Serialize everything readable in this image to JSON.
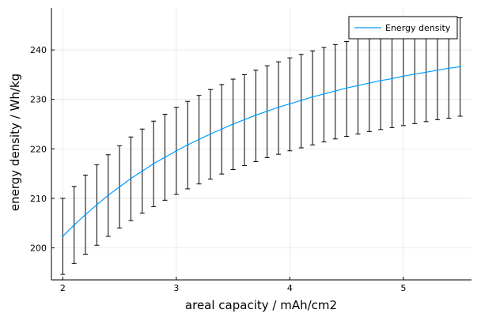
{
  "chart_data": {
    "type": "line",
    "title": "",
    "xlabel": "areal capacity / mAh/cm2",
    "ylabel": "energy density / Wh/kg",
    "xlim": [
      1.9,
      5.6
    ],
    "ylim": [
      193.5,
      248.5
    ],
    "xticks": [
      2,
      3,
      4,
      5
    ],
    "yticks": [
      200,
      210,
      220,
      230,
      240
    ],
    "grid": true,
    "legend": {
      "position": "top-right"
    },
    "series": [
      {
        "name": "Energy density",
        "color": "#009AFA",
        "x": [
          2.0,
          2.1,
          2.2,
          2.3,
          2.4,
          2.5,
          2.6,
          2.7,
          2.8,
          2.9,
          3.0,
          3.1,
          3.2,
          3.3,
          3.4,
          3.5,
          3.6,
          3.7,
          3.8,
          3.9,
          4.0,
          4.1,
          4.2,
          4.3,
          4.4,
          4.5,
          4.6,
          4.7,
          4.8,
          4.9,
          5.0,
          5.1,
          5.2,
          5.3,
          5.4,
          5.5
        ],
        "y": [
          202.3,
          204.6,
          206.7,
          208.7,
          210.6,
          212.3,
          214.0,
          215.5,
          217.0,
          218.3,
          219.6,
          220.8,
          221.9,
          223.0,
          224.0,
          225.0,
          225.9,
          226.8,
          227.6,
          228.4,
          229.1,
          229.8,
          230.5,
          231.1,
          231.7,
          232.3,
          232.8,
          233.3,
          233.8,
          234.2,
          234.7,
          235.1,
          235.5,
          235.9,
          236.3,
          236.6
        ],
        "err_low": [
          194.6,
          196.8,
          198.7,
          200.5,
          202.3,
          204.0,
          205.5,
          207.0,
          208.3,
          209.6,
          210.8,
          211.9,
          212.9,
          213.9,
          214.9,
          215.8,
          216.6,
          217.4,
          218.2,
          218.9,
          219.6,
          220.2,
          220.8,
          221.4,
          222.0,
          222.5,
          223.0,
          223.5,
          223.9,
          224.3,
          224.7,
          225.1,
          225.5,
          225.9,
          226.2,
          226.6
        ],
        "err_high": [
          210.0,
          212.4,
          214.7,
          216.8,
          218.8,
          220.6,
          222.4,
          224.0,
          225.6,
          227.0,
          228.4,
          229.6,
          230.8,
          232.0,
          233.0,
          234.1,
          235.0,
          235.9,
          236.8,
          237.6,
          238.4,
          239.1,
          239.8,
          240.5,
          241.1,
          241.7,
          242.3,
          242.8,
          243.4,
          243.9,
          244.4,
          244.8,
          245.3,
          245.7,
          246.1,
          246.5
        ]
      }
    ]
  }
}
